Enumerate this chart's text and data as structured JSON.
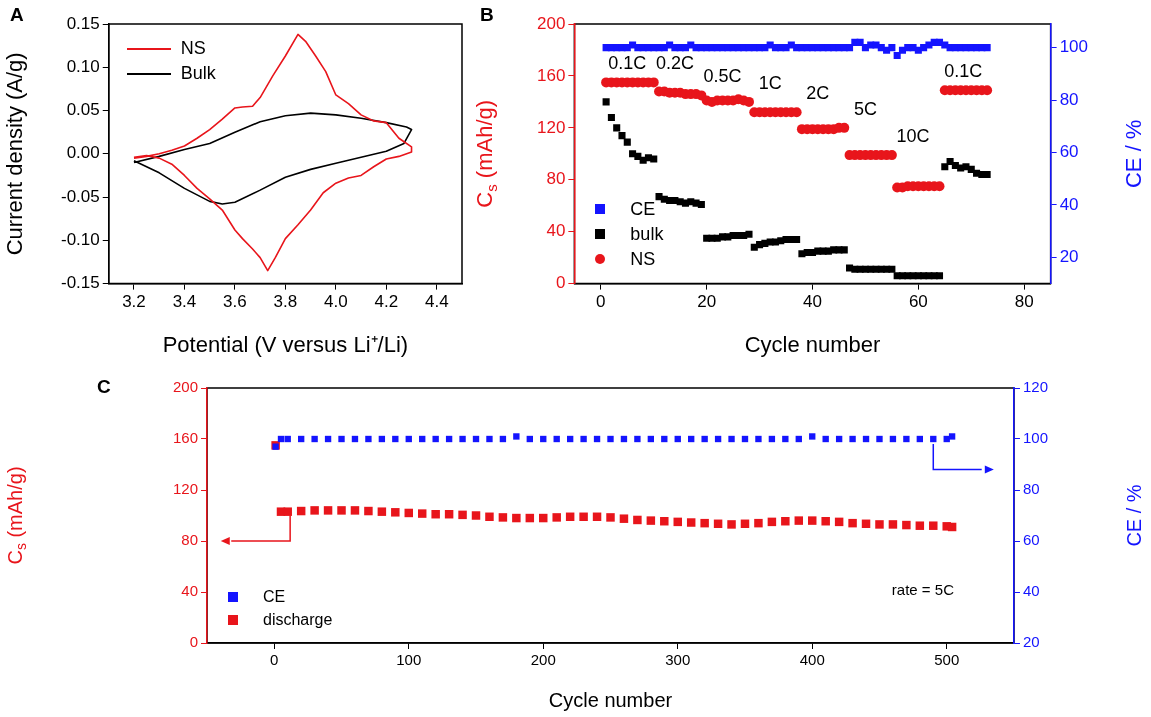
{
  "chart_data": [
    {
      "type": "line",
      "title": "A",
      "xlabel": "Potential (V versus Li⁺/Li)",
      "ylabel": "Current density (A/g)",
      "xlim": [
        3.1,
        4.5
      ],
      "xticks": [
        3.2,
        3.4,
        3.6,
        3.8,
        {
          "value": 4,
          "label": "4.0"
        },
        4.2,
        4.4
      ],
      "ylim": [
        -0.15,
        0.15
      ],
      "yticks": [
        -0.15,
        {
          "value": -0.1,
          "label": "-0.10"
        },
        -0.05,
        {
          "value": 0,
          "label": "0.00"
        },
        0.05,
        {
          "value": 0.1,
          "label": "0.10"
        },
        0.15
      ],
      "legend": "top left",
      "marker": "none",
      "series": [
        {
          "name": "NS",
          "color": "#e8151b",
          "x": [
            3.2,
            3.25,
            3.3,
            3.35,
            3.4,
            3.45,
            3.5,
            3.55,
            3.6,
            3.63,
            3.67,
            3.7,
            3.75,
            3.8,
            3.85,
            3.88,
            3.92,
            3.96,
            4.0,
            4.05,
            4.1,
            4.15,
            4.2,
            4.25,
            4.3,
            4.3,
            4.25,
            4.2,
            4.15,
            4.1,
            4.05,
            4.0,
            3.95,
            3.9,
            3.85,
            3.8,
            3.76,
            3.73,
            3.7,
            3.67,
            3.63,
            3.6,
            3.55,
            3.5,
            3.45,
            3.4,
            3.35,
            3.3,
            3.25,
            3.2
          ],
          "values": [
            -0.005,
            -0.003,
            0.0,
            0.004,
            0.009,
            0.018,
            0.028,
            0.04,
            0.053,
            0.054,
            0.055,
            0.065,
            0.09,
            0.113,
            0.138,
            0.13,
            0.113,
            0.095,
            0.068,
            0.058,
            0.045,
            0.038,
            0.036,
            0.018,
            0.008,
            0.002,
            -0.003,
            -0.006,
            -0.015,
            -0.025,
            -0.028,
            -0.034,
            -0.045,
            -0.065,
            -0.082,
            -0.098,
            -0.12,
            -0.135,
            -0.12,
            -0.11,
            -0.098,
            -0.088,
            -0.065,
            -0.052,
            -0.04,
            -0.025,
            -0.012,
            -0.005,
            -0.002,
            -0.004
          ]
        },
        {
          "name": "Bulk",
          "color": "#000000",
          "x": [
            3.2,
            3.3,
            3.4,
            3.5,
            3.6,
            3.7,
            3.8,
            3.9,
            4.0,
            4.1,
            4.2,
            4.28,
            4.3,
            4.27,
            4.2,
            4.1,
            4.0,
            3.9,
            3.8,
            3.7,
            3.6,
            3.55,
            3.5,
            3.4,
            3.3,
            3.2
          ],
          "values": [
            -0.01,
            -0.003,
            0.005,
            0.012,
            0.025,
            0.037,
            0.044,
            0.047,
            0.045,
            0.041,
            0.036,
            0.031,
            0.028,
            0.012,
            0.003,
            -0.004,
            -0.011,
            -0.018,
            -0.027,
            -0.042,
            -0.056,
            -0.058,
            -0.055,
            -0.04,
            -0.022,
            -0.008
          ]
        }
      ]
    },
    {
      "type": "scatter",
      "title": "B",
      "xlabel": "Cycle number",
      "ylabel": "C$_{s}$ (mAh/g)",
      "y2label": "CE / %",
      "xlim": [
        -5,
        85
      ],
      "xticks": [
        0,
        20,
        40,
        60,
        80
      ],
      "ylim": [
        0,
        200
      ],
      "yticks": [
        0,
        40,
        80,
        120,
        160,
        200
      ],
      "y2lim": [
        10,
        109
      ],
      "y2ticks": [
        20,
        40,
        60,
        80,
        100
      ],
      "legend": "bottom left",
      "x": [
        1,
        2,
        3,
        4,
        5,
        6,
        7,
        8,
        9,
        10,
        11,
        12,
        13,
        14,
        15,
        16,
        17,
        18,
        19,
        20,
        21,
        22,
        23,
        24,
        25,
        26,
        27,
        28,
        29,
        30,
        31,
        32,
        33,
        34,
        35,
        36,
        37,
        38,
        39,
        40,
        41,
        42,
        43,
        44,
        45,
        46,
        47,
        48,
        49,
        50,
        51,
        52,
        53,
        54,
        55,
        56,
        57,
        58,
        59,
        60,
        61,
        62,
        63,
        64,
        65,
        66,
        67,
        68,
        69,
        70,
        71,
        72,
        73
      ],
      "annotations": [
        "0.1C",
        "0.2C",
        "0.5C",
        "1C",
        "2C",
        "5C",
        "10C",
        "0.1C"
      ],
      "series": [
        {
          "name": "CE",
          "color": "#1414ff",
          "axis": "y2",
          "marker": "square",
          "values": [
            100,
            100,
            100,
            100,
            100,
            101,
            100,
            100,
            100,
            100,
            100,
            100,
            101,
            100,
            100,
            100,
            101,
            100,
            100,
            100,
            100,
            100,
            100,
            100,
            100,
            100,
            100,
            100,
            100,
            100,
            100,
            101,
            100,
            100,
            100,
            101,
            100,
            100,
            100,
            100,
            100,
            100,
            100,
            100,
            100,
            100,
            100,
            102,
            102,
            100,
            101,
            101,
            100,
            99,
            100,
            97,
            99,
            100,
            100,
            99,
            100,
            101,
            102,
            102,
            101,
            100,
            100,
            100,
            100,
            100,
            100,
            100,
            100
          ]
        },
        {
          "name": "bulk",
          "color": "#000000",
          "marker": "square",
          "values": [
            140,
            128,
            120,
            114,
            109,
            100,
            98,
            95,
            97,
            96,
            67,
            65,
            64,
            64,
            63,
            62,
            63,
            62,
            61,
            35,
            35,
            35,
            36,
            36,
            37,
            37,
            37,
            38,
            28,
            30,
            31,
            32,
            32,
            33,
            34,
            34,
            34,
            23,
            24,
            24,
            25,
            25,
            25,
            26,
            26,
            26,
            12,
            11,
            11,
            11,
            11,
            11,
            11,
            11,
            11,
            6,
            6,
            6,
            6,
            6,
            6,
            6,
            6,
            6,
            90,
            94,
            91,
            89,
            90,
            88,
            85,
            84,
            84
          ]
        },
        {
          "name": "NS",
          "color": "#e8151b",
          "marker": "circle",
          "values": [
            155,
            155,
            155,
            155,
            155,
            155,
            155,
            155,
            155,
            155,
            148,
            148,
            147,
            147,
            147,
            146,
            146,
            146,
            145,
            141,
            140,
            141,
            141,
            141,
            141,
            142,
            141,
            140,
            132,
            132,
            132,
            132,
            132,
            132,
            132,
            132,
            132,
            119,
            119,
            119,
            119,
            119,
            119,
            119,
            120,
            120,
            99,
            99,
            99,
            99,
            99,
            99,
            99,
            99,
            99,
            74,
            74,
            75,
            75,
            75,
            75,
            75,
            75,
            75,
            149,
            149,
            149,
            149,
            149,
            149,
            149,
            149,
            149
          ]
        }
      ]
    },
    {
      "type": "scatter",
      "title": "C",
      "xlabel": "Cycle number",
      "ylabel": "C$_{s}$ (mAh/g)",
      "y2label": "CE / %",
      "xlim": [
        -50,
        550
      ],
      "xticks": [
        0,
        100,
        200,
        300,
        400,
        500
      ],
      "ylim": [
        0,
        200
      ],
      "yticks": [
        0,
        40,
        80,
        120,
        160,
        200
      ],
      "y2lim": [
        20,
        120
      ],
      "y2ticks": [
        20,
        40,
        60,
        80,
        100,
        120
      ],
      "legend": "bottom left",
      "marker": "square",
      "annotations": [
        "rate = 5C"
      ],
      "series": [
        {
          "name": "CE",
          "color": "#1414ff",
          "axis": "y2",
          "x": [
            1,
            5,
            10,
            20,
            30,
            40,
            50,
            60,
            70,
            80,
            90,
            100,
            110,
            120,
            130,
            140,
            150,
            160,
            170,
            180,
            190,
            200,
            210,
            220,
            230,
            240,
            250,
            260,
            270,
            280,
            290,
            300,
            310,
            320,
            330,
            340,
            350,
            360,
            370,
            380,
            390,
            400,
            410,
            420,
            430,
            440,
            450,
            460,
            470,
            480,
            490,
            500,
            504
          ],
          "values": [
            97,
            100,
            100,
            100,
            100,
            100,
            100,
            100,
            100,
            100,
            100,
            100,
            100,
            100,
            100,
            100,
            100,
            100,
            100,
            101,
            100,
            100,
            100,
            100,
            100,
            100,
            100,
            100,
            100,
            100,
            100,
            100,
            100,
            100,
            100,
            100,
            100,
            100,
            100,
            100,
            100,
            101,
            100,
            100,
            100,
            100,
            100,
            100,
            100,
            100,
            100,
            100,
            101
          ]
        },
        {
          "name": "discharge",
          "color": "#e8151b",
          "x": [
            1,
            5,
            10,
            20,
            30,
            40,
            50,
            60,
            70,
            80,
            90,
            100,
            110,
            120,
            130,
            140,
            150,
            160,
            170,
            180,
            190,
            200,
            210,
            220,
            230,
            240,
            250,
            260,
            270,
            280,
            290,
            300,
            310,
            320,
            330,
            340,
            350,
            360,
            370,
            380,
            390,
            400,
            410,
            420,
            430,
            440,
            450,
            460,
            470,
            480,
            490,
            500,
            504
          ],
          "values": [
            155,
            103,
            103,
            103.5,
            104,
            104,
            104,
            104,
            103.5,
            103,
            102.5,
            102,
            101.5,
            101,
            101,
            100.5,
            100,
            99,
            98.5,
            98,
            98,
            98,
            98.5,
            99,
            99,
            99,
            98.5,
            97.5,
            96.5,
            96,
            95.5,
            95,
            94.5,
            94,
            93.5,
            93,
            93.5,
            94,
            95,
            95.5,
            96,
            96,
            95.5,
            95,
            94,
            93.5,
            93,
            93,
            92.5,
            92,
            92,
            91.5,
            91
          ]
        }
      ]
    }
  ]
}
